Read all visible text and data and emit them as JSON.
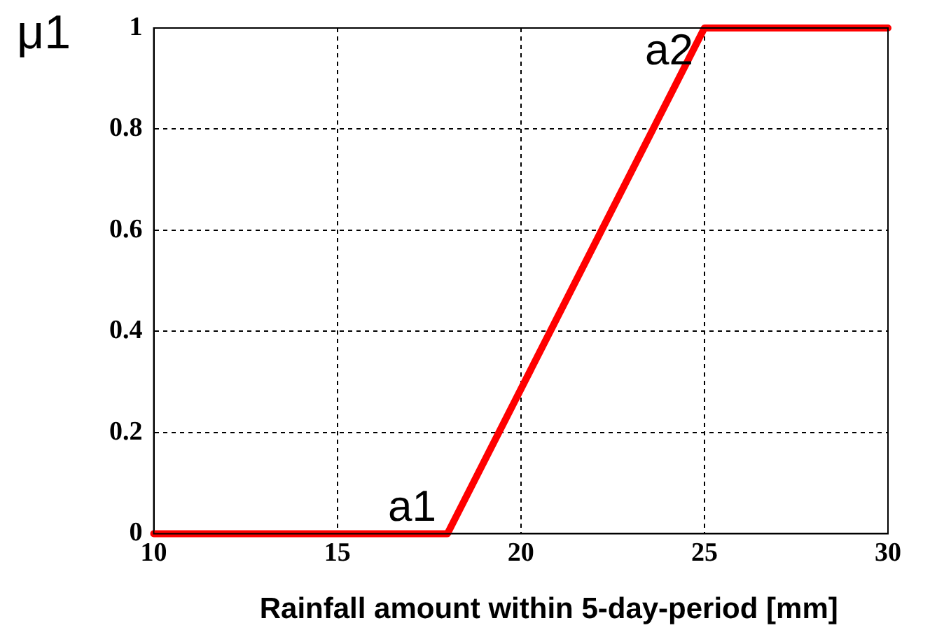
{
  "chart_data": {
    "type": "line",
    "xlabel": "Rainfall amount within 5-day-period [mm]",
    "ylabel": "μ1",
    "x": [
      10,
      18,
      25,
      30
    ],
    "series": [
      {
        "color": "#ff0000",
        "values": [
          0,
          0,
          1,
          1
        ]
      }
    ],
    "xlim": [
      10,
      30
    ],
    "xticks": [
      10,
      15,
      20,
      25,
      30
    ],
    "ylim": [
      0,
      1
    ],
    "yticks": [
      0,
      0.2,
      0.4,
      0.6,
      0.8,
      1
    ],
    "grid": true,
    "line_style": "solid",
    "marker": "none",
    "annotations": [
      {
        "text": "a1",
        "x": 18,
        "y": 0
      },
      {
        "text": "a2",
        "x": 25,
        "y": 1
      }
    ]
  }
}
